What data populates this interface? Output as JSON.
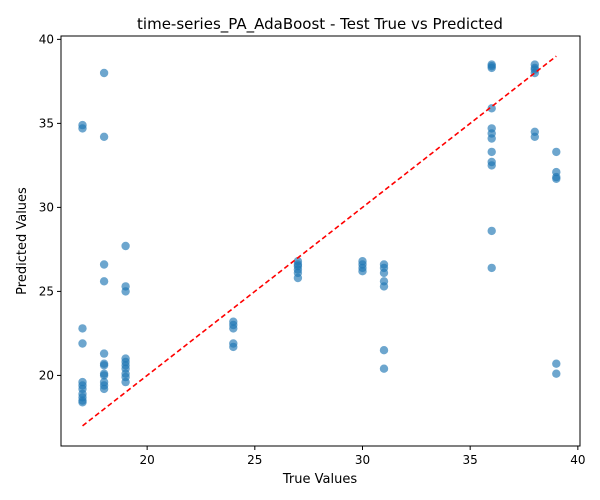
{
  "chart_data": {
    "type": "scatter",
    "title": "time-series_PA_AdaBoost - Test True vs Predicted",
    "xlabel": "True Values",
    "ylabel": "Predicted Values",
    "xlim": [
      16.0,
      40.1
    ],
    "ylim": [
      15.8,
      40.2
    ],
    "xticks": [
      20,
      25,
      30,
      35,
      40
    ],
    "yticks": [
      20,
      25,
      30,
      35,
      40
    ],
    "grid": false,
    "marker_color": "#1f77b4",
    "reference_line": {
      "style": "dashed",
      "color": "#ff0000",
      "x": [
        17,
        39
      ],
      "y": [
        17,
        39
      ]
    },
    "points": [
      [
        17,
        34.9
      ],
      [
        17,
        34.7
      ],
      [
        17,
        22.8
      ],
      [
        17,
        21.9
      ],
      [
        17,
        19.6
      ],
      [
        17,
        19.4
      ],
      [
        17,
        19.2
      ],
      [
        17,
        18.9
      ],
      [
        17,
        18.7
      ],
      [
        17,
        18.5
      ],
      [
        17,
        18.4
      ],
      [
        18,
        38.0
      ],
      [
        18,
        34.2
      ],
      [
        18,
        26.6
      ],
      [
        18,
        25.6
      ],
      [
        18,
        21.3
      ],
      [
        18,
        20.7
      ],
      [
        18,
        20.6
      ],
      [
        18,
        20.1
      ],
      [
        18,
        20.0
      ],
      [
        18,
        19.6
      ],
      [
        18,
        19.4
      ],
      [
        18,
        19.2
      ],
      [
        19,
        27.7
      ],
      [
        19,
        25.3
      ],
      [
        19,
        25.0
      ],
      [
        19,
        21.0
      ],
      [
        19,
        20.8
      ],
      [
        19,
        20.6
      ],
      [
        19,
        20.4
      ],
      [
        19,
        20.1
      ],
      [
        19,
        19.9
      ],
      [
        19,
        19.6
      ],
      [
        24,
        23.2
      ],
      [
        24,
        23.0
      ],
      [
        24,
        22.8
      ],
      [
        24,
        21.9
      ],
      [
        24,
        21.7
      ],
      [
        27,
        26.8
      ],
      [
        27,
        26.6
      ],
      [
        27,
        26.5
      ],
      [
        27,
        26.3
      ],
      [
        27,
        26.1
      ],
      [
        27,
        25.8
      ],
      [
        30,
        26.8
      ],
      [
        30,
        26.6
      ],
      [
        30,
        26.4
      ],
      [
        30,
        26.2
      ],
      [
        31,
        26.6
      ],
      [
        31,
        26.4
      ],
      [
        31,
        26.1
      ],
      [
        31,
        25.6
      ],
      [
        31,
        25.3
      ],
      [
        31,
        21.5
      ],
      [
        31,
        20.4
      ],
      [
        36,
        38.5
      ],
      [
        36,
        38.4
      ],
      [
        36,
        38.3
      ],
      [
        36,
        35.9
      ],
      [
        36,
        34.7
      ],
      [
        36,
        34.4
      ],
      [
        36,
        34.1
      ],
      [
        36,
        33.3
      ],
      [
        36,
        32.7
      ],
      [
        36,
        32.5
      ],
      [
        36,
        28.6
      ],
      [
        36,
        26.4
      ],
      [
        38,
        38.5
      ],
      [
        38,
        38.3
      ],
      [
        38,
        38.2
      ],
      [
        38,
        38.0
      ],
      [
        38,
        34.5
      ],
      [
        38,
        34.2
      ],
      [
        39,
        33.3
      ],
      [
        39,
        32.1
      ],
      [
        39,
        31.8
      ],
      [
        39,
        31.7
      ],
      [
        39,
        20.7
      ],
      [
        39,
        20.1
      ]
    ]
  }
}
